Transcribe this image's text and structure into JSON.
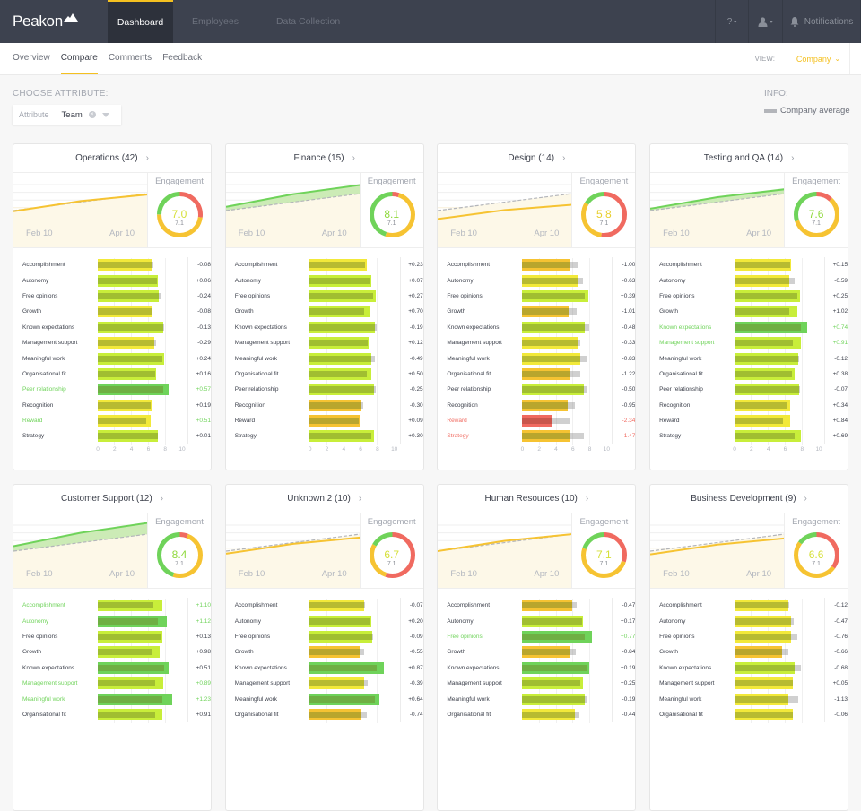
{
  "app": {
    "brand": "Peakon"
  },
  "topnav": {
    "items": [
      {
        "label": "Dashboard",
        "active": true
      },
      {
        "label": "Employees",
        "active": false
      },
      {
        "label": "Data Collection",
        "active": false
      }
    ],
    "help_label": "?",
    "notifications_label": "Notifications"
  },
  "subnav": {
    "tabs": [
      {
        "label": "Overview",
        "active": false
      },
      {
        "label": "Compare",
        "active": true
      },
      {
        "label": "Comments",
        "active": false
      },
      {
        "label": "Feedback",
        "active": false
      }
    ],
    "view_label": "VIEW:",
    "view_value": "Company"
  },
  "controls": {
    "choose_title": "CHOOSE ATTRIBUTE:",
    "attribute_label": "Attribute",
    "attribute_value": "Team",
    "info_title": "INFO:",
    "legend_label": "Company average"
  },
  "colors": {
    "green": "#6fd35a",
    "lime": "#c8ee3a",
    "yellow": "#f2e93a",
    "orange": "#f6c332",
    "red": "#f06a60",
    "avg": "#b3b5ba",
    "accent": "#f4c020"
  },
  "engagement_label": "Engagement",
  "date_labels": [
    "Feb 10",
    "Apr 10"
  ],
  "axis_ticks": [
    "0",
    "2",
    "4",
    "6",
    "8",
    "10"
  ],
  "company_average": 7.1,
  "cards": [
    {
      "name": "Operations (42)",
      "score": "7.0",
      "avg": "7.1",
      "trend": "orange",
      "ring": {
        "green": 0.25,
        "red": 0.27,
        "orange": 0.48
      },
      "rows": [
        {
          "label": "Accomplishment",
          "value": 6.5,
          "avg": 6.6,
          "diff": "-0.08",
          "status": ""
        },
        {
          "label": "Autonomy",
          "value": 7.2,
          "avg": 7.1,
          "diff": "+0.06",
          "status": ""
        },
        {
          "label": "Free opinions",
          "value": 7.3,
          "avg": 7.5,
          "diff": "-0.24",
          "status": ""
        },
        {
          "label": "Growth",
          "value": 6.4,
          "avg": 6.5,
          "diff": "-0.08",
          "status": ""
        },
        {
          "label": "Known expectations",
          "value": 7.8,
          "avg": 7.9,
          "diff": "-0.13",
          "status": ""
        },
        {
          "label": "Management support",
          "value": 6.7,
          "avg": 7.0,
          "diff": "-0.29",
          "status": ""
        },
        {
          "label": "Meaningful work",
          "value": 7.9,
          "avg": 7.7,
          "diff": "+0.24",
          "status": ""
        },
        {
          "label": "Organisational fit",
          "value": 7.0,
          "avg": 6.9,
          "diff": "+0.16",
          "status": ""
        },
        {
          "label": "Peer relationship",
          "value": 8.4,
          "avg": 7.8,
          "diff": "+0.57",
          "status": "pos"
        },
        {
          "label": "Recognition",
          "value": 6.4,
          "avg": 6.3,
          "diff": "+0.19",
          "status": ""
        },
        {
          "label": "Reward",
          "value": 6.3,
          "avg": 5.8,
          "diff": "+0.51",
          "status": "pos"
        },
        {
          "label": "Strategy",
          "value": 7.2,
          "avg": 7.2,
          "diff": "+0.01",
          "status": ""
        }
      ]
    },
    {
      "name": "Finance (15)",
      "score": "8.1",
      "avg": "7.1",
      "trend": "green",
      "ring": {
        "green": 0.45,
        "red": 0.05,
        "orange": 0.5
      },
      "rows": [
        {
          "label": "Accomplishment",
          "value": 6.8,
          "avg": 6.6,
          "diff": "+0.23",
          "status": ""
        },
        {
          "label": "Autonomy",
          "value": 7.3,
          "avg": 7.2,
          "diff": "+0.07",
          "status": ""
        },
        {
          "label": "Free opinions",
          "value": 7.8,
          "avg": 7.5,
          "diff": "+0.27",
          "status": ""
        },
        {
          "label": "Growth",
          "value": 7.2,
          "avg": 6.5,
          "diff": "+0.70",
          "status": ""
        },
        {
          "label": "Known expectations",
          "value": 7.7,
          "avg": 7.9,
          "diff": "-0.19",
          "status": ""
        },
        {
          "label": "Management support",
          "value": 7.0,
          "avg": 6.9,
          "diff": "+0.12",
          "status": ""
        },
        {
          "label": "Meaningful work",
          "value": 7.3,
          "avg": 7.7,
          "diff": "-0.49",
          "status": ""
        },
        {
          "label": "Organisational fit",
          "value": 7.3,
          "avg": 6.8,
          "diff": "+0.50",
          "status": ""
        },
        {
          "label": "Peer relationship",
          "value": 7.6,
          "avg": 7.8,
          "diff": "-0.25",
          "status": ""
        },
        {
          "label": "Recognition",
          "value": 6.0,
          "avg": 6.3,
          "diff": "-0.30",
          "status": ""
        },
        {
          "label": "Reward",
          "value": 5.9,
          "avg": 5.8,
          "diff": "+0.09",
          "status": ""
        },
        {
          "label": "Strategy",
          "value": 7.6,
          "avg": 7.3,
          "diff": "+0.30",
          "status": ""
        }
      ]
    },
    {
      "name": "Design (14)",
      "score": "5.8",
      "avg": "7.1",
      "trend": "orange",
      "ring": {
        "green": 0.16,
        "red": 0.52,
        "orange": 0.32
      },
      "rows": [
        {
          "label": "Accomplishment",
          "value": 5.6,
          "avg": 6.6,
          "diff": "-1.00",
          "status": ""
        },
        {
          "label": "Autonomy",
          "value": 6.6,
          "avg": 7.2,
          "diff": "-0.63",
          "status": ""
        },
        {
          "label": "Free opinions",
          "value": 7.9,
          "avg": 7.5,
          "diff": "+0.39",
          "status": ""
        },
        {
          "label": "Growth",
          "value": 5.5,
          "avg": 6.5,
          "diff": "-1.01",
          "status": ""
        },
        {
          "label": "Known expectations",
          "value": 7.5,
          "avg": 8.0,
          "diff": "-0.48",
          "status": ""
        },
        {
          "label": "Management support",
          "value": 6.6,
          "avg": 6.9,
          "diff": "-0.33",
          "status": ""
        },
        {
          "label": "Meaningful work",
          "value": 6.9,
          "avg": 7.7,
          "diff": "-0.83",
          "status": ""
        },
        {
          "label": "Organisational fit",
          "value": 5.7,
          "avg": 6.9,
          "diff": "-1.22",
          "status": ""
        },
        {
          "label": "Peer relationship",
          "value": 7.3,
          "avg": 7.8,
          "diff": "-0.50",
          "status": ""
        },
        {
          "label": "Recognition",
          "value": 5.4,
          "avg": 6.3,
          "diff": "-0.95",
          "status": ""
        },
        {
          "label": "Reward",
          "value": 3.5,
          "avg": 5.8,
          "diff": "-2.34",
          "status": "neg"
        },
        {
          "label": "Strategy",
          "value": 5.8,
          "avg": 7.3,
          "diff": "-1.47",
          "status": "neg"
        }
      ]
    },
    {
      "name": "Testing and QA (14)",
      "score": "7.6",
      "avg": "7.1",
      "trend": "green",
      "ring": {
        "green": 0.3,
        "red": 0.12,
        "orange": 0.58
      },
      "rows": [
        {
          "label": "Accomplishment",
          "value": 6.7,
          "avg": 6.6,
          "diff": "+0.15",
          "status": ""
        },
        {
          "label": "Autonomy",
          "value": 6.5,
          "avg": 7.2,
          "diff": "-0.59",
          "status": ""
        },
        {
          "label": "Free opinions",
          "value": 7.8,
          "avg": 7.5,
          "diff": "+0.25",
          "status": ""
        },
        {
          "label": "Growth",
          "value": 7.5,
          "avg": 6.5,
          "diff": "+1.02",
          "status": ""
        },
        {
          "label": "Known expectations",
          "value": 8.7,
          "avg": 7.9,
          "diff": "+0.74",
          "status": "pos"
        },
        {
          "label": "Management support",
          "value": 7.9,
          "avg": 6.9,
          "diff": "+0.91",
          "status": "pos"
        },
        {
          "label": "Meaningful work",
          "value": 7.6,
          "avg": 7.7,
          "diff": "-0.12",
          "status": ""
        },
        {
          "label": "Organisational fit",
          "value": 7.2,
          "avg": 6.8,
          "diff": "+0.38",
          "status": ""
        },
        {
          "label": "Peer relationship",
          "value": 7.7,
          "avg": 7.8,
          "diff": "-0.07",
          "status": ""
        },
        {
          "label": "Recognition",
          "value": 6.6,
          "avg": 6.3,
          "diff": "+0.34",
          "status": ""
        },
        {
          "label": "Reward",
          "value": 6.6,
          "avg": 5.8,
          "diff": "+0.84",
          "status": ""
        },
        {
          "label": "Strategy",
          "value": 7.9,
          "avg": 7.2,
          "diff": "+0.69",
          "status": ""
        }
      ]
    },
    {
      "name": "Customer Support (12)",
      "score": "8.4",
      "avg": "7.1",
      "trend": "green",
      "ring": {
        "green": 0.45,
        "red": 0.06,
        "orange": 0.49
      },
      "rows": [
        {
          "label": "Accomplishment",
          "value": 7.7,
          "avg": 6.6,
          "diff": "+1.10",
          "status": "pos"
        },
        {
          "label": "Autonomy",
          "value": 8.2,
          "avg": 7.2,
          "diff": "+1.12",
          "status": "pos"
        },
        {
          "label": "Free opinions",
          "value": 7.7,
          "avg": 7.5,
          "diff": "+0.13",
          "status": ""
        },
        {
          "label": "Growth",
          "value": 7.4,
          "avg": 6.5,
          "diff": "+0.98",
          "status": ""
        },
        {
          "label": "Known expectations",
          "value": 8.4,
          "avg": 7.9,
          "diff": "+0.51",
          "status": ""
        },
        {
          "label": "Management support",
          "value": 7.8,
          "avg": 6.9,
          "diff": "+0.89",
          "status": "pos"
        },
        {
          "label": "Meaningful work",
          "value": 8.9,
          "avg": 7.7,
          "diff": "+1.23",
          "status": "pos"
        },
        {
          "label": "Organisational fit",
          "value": 7.7,
          "avg": 6.8,
          "diff": "+0.91",
          "status": ""
        }
      ]
    },
    {
      "name": "Unknown 2 (10)",
      "score": "6.7",
      "avg": "7.1",
      "trend": "orange",
      "ring": {
        "green": 0.17,
        "red": 0.55,
        "orange": 0.28
      },
      "rows": [
        {
          "label": "Accomplishment",
          "value": 6.5,
          "avg": 6.6,
          "diff": "-0.07",
          "status": ""
        },
        {
          "label": "Autonomy",
          "value": 7.3,
          "avg": 7.1,
          "diff": "+0.20",
          "status": ""
        },
        {
          "label": "Free opinions",
          "value": 7.4,
          "avg": 7.5,
          "diff": "-0.09",
          "status": ""
        },
        {
          "label": "Growth",
          "value": 5.9,
          "avg": 6.5,
          "diff": "-0.55",
          "status": ""
        },
        {
          "label": "Known expectations",
          "value": 8.8,
          "avg": 7.9,
          "diff": "+0.87",
          "status": ""
        },
        {
          "label": "Management support",
          "value": 6.5,
          "avg": 6.9,
          "diff": "-0.39",
          "status": ""
        },
        {
          "label": "Meaningful work",
          "value": 8.3,
          "avg": 7.7,
          "diff": "+0.64",
          "status": ""
        },
        {
          "label": "Organisational fit",
          "value": 6.0,
          "avg": 6.8,
          "diff": "-0.74",
          "status": ""
        }
      ]
    },
    {
      "name": "Human Resources (10)",
      "score": "7.1",
      "avg": "7.1",
      "trend": "orange",
      "ring": {
        "green": 0.2,
        "red": 0.3,
        "orange": 0.5
      },
      "rows": [
        {
          "label": "Accomplishment",
          "value": 6.0,
          "avg": 6.5,
          "diff": "-0.47",
          "status": ""
        },
        {
          "label": "Autonomy",
          "value": 7.2,
          "avg": 7.1,
          "diff": "+0.17",
          "status": ""
        },
        {
          "label": "Free opinions",
          "value": 8.3,
          "avg": 7.5,
          "diff": "+0.77",
          "status": "pos"
        },
        {
          "label": "Growth",
          "value": 5.6,
          "avg": 6.4,
          "diff": "-0.84",
          "status": ""
        },
        {
          "label": "Known expectations",
          "value": 8.0,
          "avg": 7.8,
          "diff": "+0.19",
          "status": ""
        },
        {
          "label": "Management support",
          "value": 7.2,
          "avg": 6.9,
          "diff": "+0.25",
          "status": ""
        },
        {
          "label": "Meaningful work",
          "value": 7.5,
          "avg": 7.7,
          "diff": "-0.19",
          "status": ""
        },
        {
          "label": "Organisational fit",
          "value": 6.3,
          "avg": 6.8,
          "diff": "-0.44",
          "status": ""
        }
      ]
    },
    {
      "name": "Business Development (9)",
      "score": "6.6",
      "avg": "7.1",
      "trend": "orange",
      "ring": {
        "green": 0.15,
        "red": 0.35,
        "orange": 0.5
      },
      "rows": [
        {
          "label": "Accomplishment",
          "value": 6.4,
          "avg": 6.5,
          "diff": "-0.12",
          "status": ""
        },
        {
          "label": "Autonomy",
          "value": 6.7,
          "avg": 7.1,
          "diff": "-0.47",
          "status": ""
        },
        {
          "label": "Free opinions",
          "value": 6.7,
          "avg": 7.5,
          "diff": "-0.76",
          "status": ""
        },
        {
          "label": "Growth",
          "value": 5.7,
          "avg": 6.4,
          "diff": "-0.66",
          "status": ""
        },
        {
          "label": "Known expectations",
          "value": 7.2,
          "avg": 7.9,
          "diff": "-0.68",
          "status": ""
        },
        {
          "label": "Management support",
          "value": 6.9,
          "avg": 6.9,
          "diff": "+0.05",
          "status": ""
        },
        {
          "label": "Meaningful work",
          "value": 6.4,
          "avg": 7.6,
          "diff": "-1.13",
          "status": ""
        },
        {
          "label": "Organisational fit",
          "value": 6.9,
          "avg": 6.9,
          "diff": "-0.06",
          "status": ""
        }
      ]
    }
  ]
}
